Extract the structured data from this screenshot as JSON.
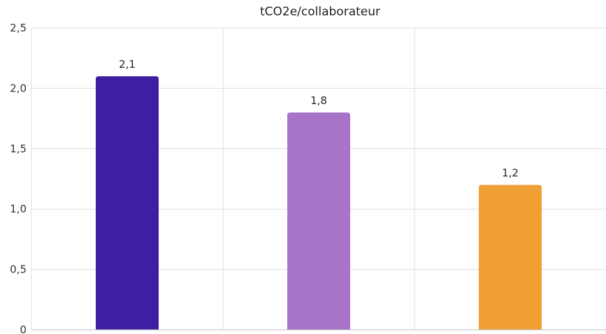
{
  "chart_data": {
    "type": "bar",
    "title": "tCO2e/collaborateur",
    "xlabel": "",
    "ylabel": "",
    "categories": [
      "",
      "",
      ""
    ],
    "values": [
      2.1,
      1.8,
      1.2
    ],
    "value_labels": [
      "2,1",
      "1,8",
      "1,2"
    ],
    "bar_colors": [
      "#3d1fa3",
      "#a774c8",
      "#f09f35"
    ],
    "ylim": [
      0,
      2.5
    ],
    "yticks": [
      0,
      0.5,
      1.0,
      1.5,
      2.0,
      2.5
    ],
    "ytick_labels": [
      "0",
      "0,5",
      "1,0",
      "1,5",
      "2,0",
      "2,5"
    ],
    "grid": true,
    "legend": "none"
  }
}
